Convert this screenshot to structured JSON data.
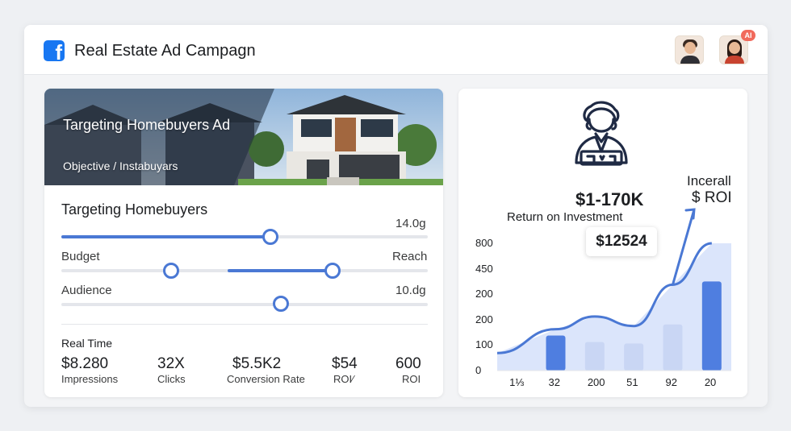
{
  "header": {
    "logo": "facebook-logo",
    "title": "Real Estate Ad Campagn",
    "badge": "AI"
  },
  "hero": {
    "title": "Targeting Homebuyers Ad",
    "subtitle": "Objective / Instabuyars"
  },
  "targeting": {
    "title": "Targeting Homebuyers",
    "value_top": "14.0g",
    "budget_label": "Budget",
    "reach_label": "Reach",
    "audience_label": "Audience",
    "value_bottom": "10.dg",
    "slider1_level": 0.57,
    "slider2_range": [
      0.3,
      0.74
    ],
    "slider3_level": 0.6
  },
  "realtime": {
    "title": "Real Time",
    "stats": [
      {
        "value": "$8.280",
        "label": "Impressions"
      },
      {
        "value": "32X",
        "label": "Clicks"
      },
      {
        "value": "$5.5K2",
        "label": "Conversion Rate"
      },
      {
        "value": "$54",
        "label": "ROI⁄"
      },
      {
        "value": "600",
        "label": "ROI"
      }
    ]
  },
  "roi_panel": {
    "icon": "investor-person-icon",
    "range": "$1-170K",
    "caption": "Return on Investment",
    "increase_line1": "Incerall",
    "increase_line2": "$ ROI",
    "callout": "$12524"
  },
  "chart_data": {
    "type": "bar",
    "categories": [
      "1⅓",
      "32",
      "200",
      "51",
      "92",
      "20"
    ],
    "values": [
      0,
      220,
      180,
      170,
      290,
      560
    ],
    "series_line": [
      110,
      260,
      340,
      280,
      540,
      800
    ],
    "yticks": [
      "0",
      "100",
      "200",
      "200",
      "450",
      "800"
    ],
    "ylim": [
      0,
      800
    ],
    "colors": {
      "bar_primary": "#4f7ee0",
      "bar_light": "#c9d6f4",
      "area": "#dbe5fb",
      "line": "#4a78d4"
    }
  }
}
